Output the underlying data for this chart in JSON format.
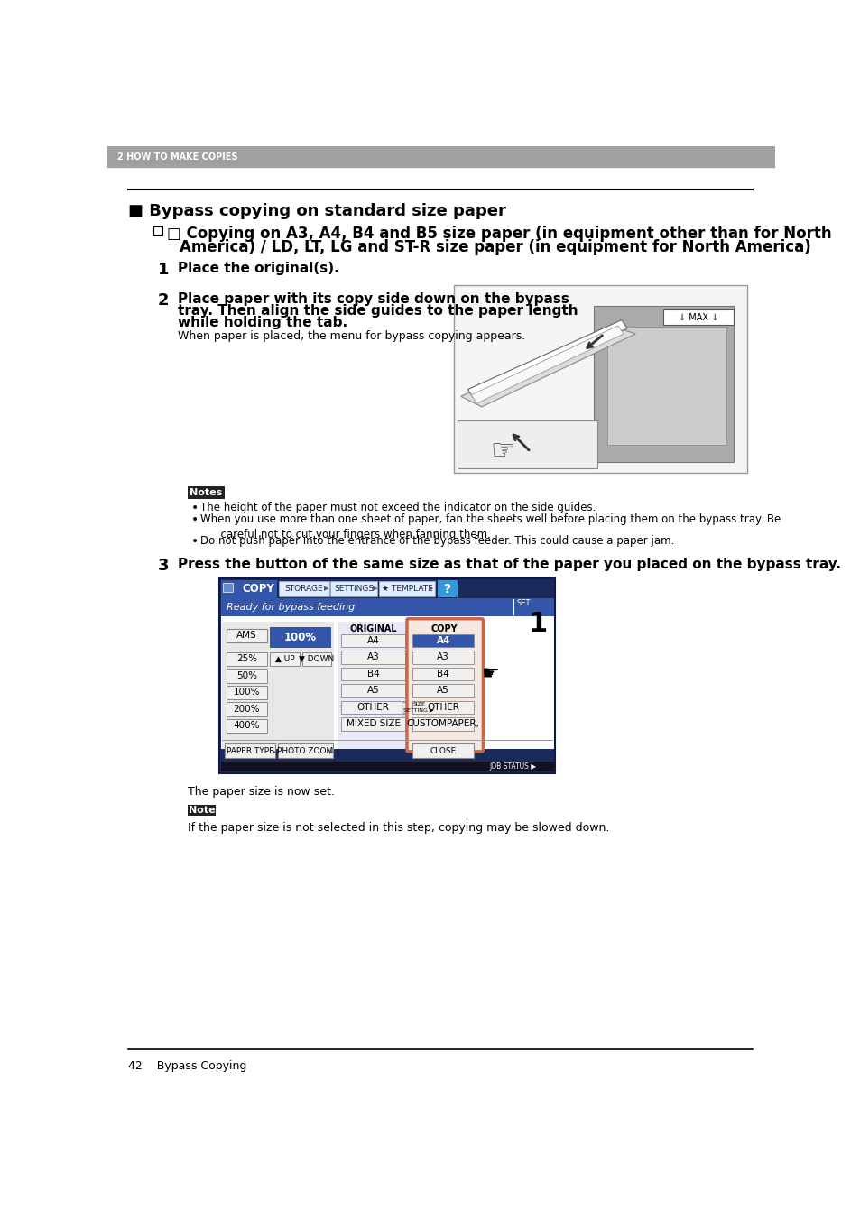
{
  "header_bg": "#a0a0a0",
  "header_text": "2 HOW TO MAKE COPIES",
  "header_text_color": "#ffffff",
  "bg_color": "#ffffff",
  "page_title": "■ Bypass copying on standard size paper",
  "section_line1": "□ Copying on A3, A4, B4 and B5 size paper (in equipment other than for North",
  "section_line2": "America) / LD, LT, LG and ST-R size paper (in equipment for North America)",
  "step1_num": "1",
  "step1_text": "Place the original(s).",
  "step2_num": "2",
  "step2_bold_lines": [
    "Place paper with its copy side down on the bypass",
    "tray. Then align the side guides to the paper length",
    "while holding the tab."
  ],
  "step2_normal": "When paper is placed, the menu for bypass copying appears.",
  "notes_label": "Notes",
  "notes": [
    "The height of the paper must not exceed the indicator on the side guides.",
    "When you use more than one sheet of paper, fan the sheets well before placing them on the bypass tray. Be careful not to cut your fingers when fanning them.",
    "Do not push paper into the entrance of the bypass feeder. This could cause a paper jam."
  ],
  "step3_num": "3",
  "step3_bold": "Press the button of the same size as that of the paper you placed on the bypass tray.",
  "step3_caption": "The paper size is now set.",
  "note_label": "Note",
  "note_text": "If the paper size is not selected in this step, copying may be slowed down.",
  "footer_line_color": "#000000",
  "footer_text": "42    Bypass Copying",
  "line_color": "#000000",
  "ui_header_bg": "#3355aa",
  "ui_tab_copy_bg": "#3355aa",
  "ui_tab_other_bg": "#ddeeff",
  "ui_status_bg": "#3355aa",
  "ui_content_bg": "#ffffff",
  "ui_btn_bg": "#f0f0f0",
  "ui_btn_blue": "#3355aa",
  "ui_a4_red": "#cc3333",
  "ui_copy_box_border": "#cc6644",
  "ui_footer_bg": "#111111"
}
